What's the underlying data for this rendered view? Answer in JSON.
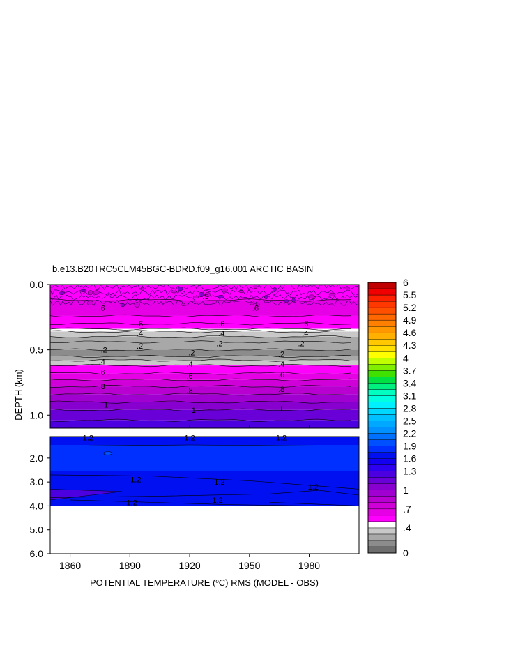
{
  "chart_data": {
    "type": "contour",
    "title": "b.e13.B20TRC5CLM45BGC-BDRD.f09_g16.001 ARCTIC BASIN",
    "xlabel_prefix": "POTENTIAL TEMPERATURE (",
    "xlabel_unit": "o",
    "xlabel_suffix": "C) RMS (MODEL - OBS)",
    "ylabel": "DEPTH (km)",
    "x_range": [
      1850,
      2005
    ],
    "x_ticks": [
      1860,
      1890,
      1920,
      1950,
      1980
    ],
    "x_tick_labels": [
      "1860",
      "1890",
      "1920",
      "1950",
      "1980"
    ],
    "upper_panel": {
      "depth_range_km": [
        0.0,
        1.1
      ],
      "y_tick_values": [
        0.0,
        0.5,
        1.0
      ],
      "y_tick_labels": [
        "0.0",
        "0.5",
        "1.0"
      ],
      "bands": [
        {
          "d": 0.0,
          "v": 0.5
        },
        {
          "d": 0.12,
          "v": 0.6
        },
        {
          "d": 0.24,
          "v": 0.55
        },
        {
          "d": 0.3,
          "v": 0.5
        },
        {
          "d": 0.34,
          "v": 0.45
        },
        {
          "d": 0.36,
          "v": 0.35
        },
        {
          "d": 0.4,
          "v": 0.25
        },
        {
          "d": 0.44,
          "v": 0.2
        },
        {
          "d": 0.5,
          "v": 0.15
        },
        {
          "d": 0.55,
          "v": 0.25
        },
        {
          "d": 0.58,
          "v": 0.35
        },
        {
          "d": 0.62,
          "v": 0.5
        },
        {
          "d": 0.68,
          "v": 0.6
        },
        {
          "d": 0.73,
          "v": 0.7
        },
        {
          "d": 0.78,
          "v": 0.8
        },
        {
          "d": 0.84,
          "v": 0.9
        },
        {
          "d": 0.9,
          "v": 1.0
        },
        {
          "d": 0.96,
          "v": 1.1
        },
        {
          "d": 1.04,
          "v": 1.2
        }
      ],
      "contour_labels": [
        {
          "year": 1876,
          "depth": 0.18,
          "text": ".6"
        },
        {
          "year": 1953,
          "depth": 0.18,
          "text": ".6"
        },
        {
          "year": 1928,
          "depth": 0.09,
          "text": ".5"
        },
        {
          "year": 1895,
          "depth": 0.3,
          "text": ".6"
        },
        {
          "year": 1936,
          "depth": 0.3,
          "text": ".6"
        },
        {
          "year": 1978,
          "depth": 0.3,
          "text": ".6"
        },
        {
          "year": 1895,
          "depth": 0.37,
          "text": ".4"
        },
        {
          "year": 1936,
          "depth": 0.37,
          "text": ".4"
        },
        {
          "year": 1978,
          "depth": 0.37,
          "text": ".4"
        },
        {
          "year": 1895,
          "depth": 0.47,
          "text": ".2"
        },
        {
          "year": 1935,
          "depth": 0.45,
          "text": ".2"
        },
        {
          "year": 1976,
          "depth": 0.45,
          "text": ".2"
        },
        {
          "year": 1877,
          "depth": 0.5,
          "text": ".2"
        },
        {
          "year": 1921,
          "depth": 0.52,
          "text": ".2"
        },
        {
          "year": 1966,
          "depth": 0.53,
          "text": ".2"
        },
        {
          "year": 1876,
          "depth": 0.59,
          "text": ".4"
        },
        {
          "year": 1920,
          "depth": 0.61,
          "text": ".4"
        },
        {
          "year": 1966,
          "depth": 0.61,
          "text": ".4"
        },
        {
          "year": 1876,
          "depth": 0.67,
          "text": ".6"
        },
        {
          "year": 1920,
          "depth": 0.7,
          "text": ".6"
        },
        {
          "year": 1966,
          "depth": 0.69,
          "text": ".6"
        },
        {
          "year": 1876,
          "depth": 0.78,
          "text": ".8"
        },
        {
          "year": 1920,
          "depth": 0.81,
          "text": ".8"
        },
        {
          "year": 1966,
          "depth": 0.8,
          "text": ".8"
        },
        {
          "year": 1878,
          "depth": 0.92,
          "text": "1"
        },
        {
          "year": 1922,
          "depth": 0.96,
          "text": "1"
        },
        {
          "year": 1966,
          "depth": 0.95,
          "text": "1"
        }
      ]
    },
    "lower_panel": {
      "depth_range_km": [
        1.1,
        6.0
      ],
      "data_max_depth_km": 4.0,
      "y_tick_values": [
        2.0,
        3.0,
        4.0,
        5.0,
        6.0
      ],
      "y_tick_labels": [
        "2.0",
        "3.0",
        "4.0",
        "5.0",
        "6.0"
      ],
      "contour_labels": [
        {
          "year": 1869,
          "depth": 1.15,
          "text": "1.2"
        },
        {
          "year": 1920,
          "depth": 1.15,
          "text": "1.2"
        },
        {
          "year": 1966,
          "depth": 1.15,
          "text": "1.2"
        },
        {
          "year": 1893,
          "depth": 2.9,
          "text": "1.2"
        },
        {
          "year": 1935,
          "depth": 3.0,
          "text": "1.2"
        },
        {
          "year": 1982,
          "depth": 3.2,
          "text": "1.2"
        },
        {
          "year": 1891,
          "depth": 3.85,
          "text": "1.2"
        },
        {
          "year": 1934,
          "depth": 3.75,
          "text": "1.2"
        }
      ]
    },
    "colorbar": {
      "levels": [
        0,
        0.1,
        0.2,
        0.3,
        0.4,
        0.5,
        0.6,
        0.7,
        0.8,
        0.9,
        1.0,
        1.1,
        1.2,
        1.3,
        1.45,
        1.6,
        1.75,
        1.9,
        2.05,
        2.2,
        2.35,
        2.5,
        2.65,
        2.8,
        2.95,
        3.1,
        3.25,
        3.4,
        3.55,
        3.7,
        3.85,
        4,
        4.15,
        4.3,
        4.45,
        4.6,
        4.75,
        4.9,
        5.05,
        5.2,
        5.35,
        5.5,
        5.75,
        6
      ],
      "tick_labels": [
        "0",
        ".4",
        ".7",
        "1",
        "1.3",
        "1.6",
        "1.9",
        "2.2",
        "2.5",
        "2.8",
        "3.1",
        "3.4",
        "3.7",
        "4",
        "4.3",
        "4.6",
        "4.9",
        "5.2",
        "5.5",
        "6"
      ],
      "colors": [
        "#6e6e6e",
        "#8c8c8c",
        "#a8a8a8",
        "#c8c8c8",
        "#ffffff",
        "#ff00ff",
        "#e600e6",
        "#d000d8",
        "#b800d0",
        "#a000d0",
        "#8800d0",
        "#6a00d8",
        "#4c00e0",
        "#2e00f0",
        "#1400f0",
        "#0010f0",
        "#0030ff",
        "#0050ff",
        "#0070ff",
        "#0090ff",
        "#00a8ff",
        "#00c0ff",
        "#00d8ff",
        "#00f0ff",
        "#00ffe0",
        "#00ffc0",
        "#00f080",
        "#00e040",
        "#40e000",
        "#80f000",
        "#c0ff00",
        "#ffff00",
        "#ffe000",
        "#ffc800",
        "#ffb000",
        "#ff9800",
        "#ff8000",
        "#ff6800",
        "#ff5000",
        "#ff3800",
        "#ff2000",
        "#f00000",
        "#c00000"
      ]
    }
  }
}
